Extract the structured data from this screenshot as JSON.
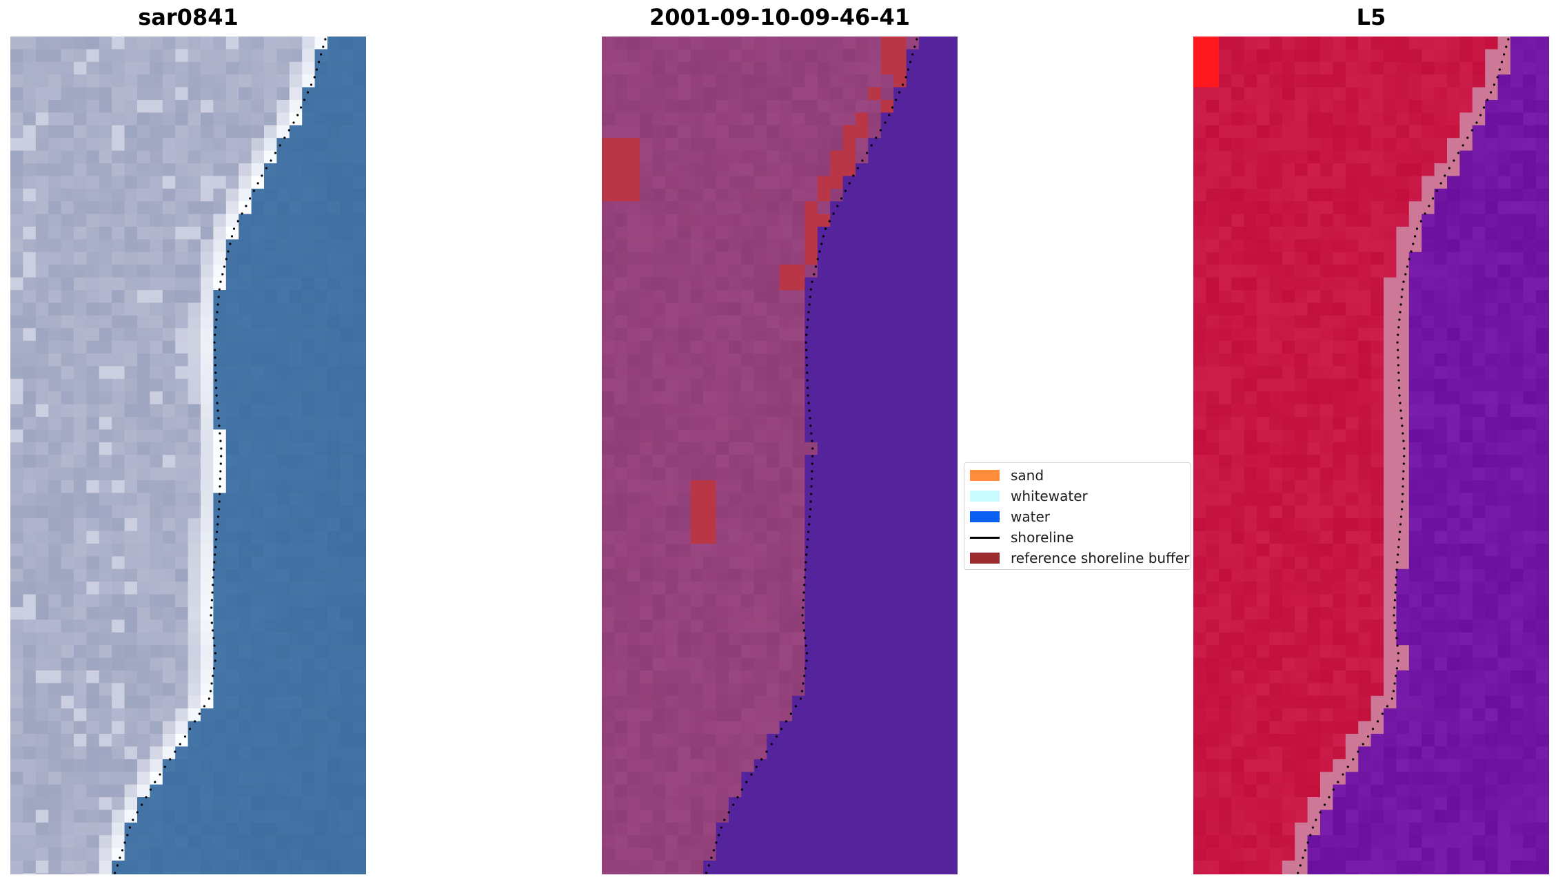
{
  "panels": [
    {
      "title": "sar0841",
      "kind": "rgb"
    },
    {
      "title": "2001-09-10-09-46-41",
      "kind": "classified"
    },
    {
      "title": "L5",
      "kind": "index"
    }
  ],
  "legend": {
    "items": [
      {
        "label": "sand",
        "color": "#ff8c3a",
        "type": "patch"
      },
      {
        "label": "whitewater",
        "color": "#c8fcfc",
        "type": "patch"
      },
      {
        "label": "water",
        "color": "#0a5ff0",
        "type": "patch"
      },
      {
        "label": "shoreline",
        "color": "#000000",
        "type": "line"
      },
      {
        "label": "reference shoreline buffer",
        "color": "#9b2c30",
        "type": "patch"
      }
    ]
  },
  "colors": {
    "ocean_rgb": "#4677a8",
    "land_rgb": "#b4b8cf",
    "land_classified": "#9a4680",
    "water_classified": "#55239b",
    "buffer_classified": "#b83646",
    "land_index": "#c20f3c",
    "water_index": "#6a109e",
    "shoreline_dots": "#000000"
  }
}
